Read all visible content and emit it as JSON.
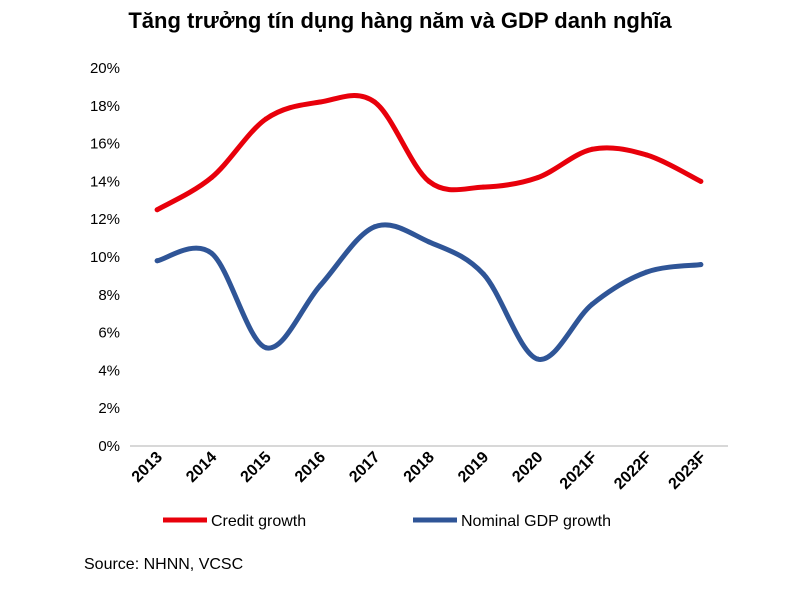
{
  "title": "Tăng trưởng tín dụng hàng năm và GDP danh nghĩa",
  "source": "Source: NHNN, VCSC",
  "chart_data": {
    "type": "line",
    "categories": [
      "2013",
      "2014",
      "2015",
      "2016",
      "2017",
      "2018",
      "2019",
      "2020",
      "2021F",
      "2022F",
      "2023F"
    ],
    "series": [
      {
        "name": "Credit growth",
        "color": "#e8000b",
        "values": [
          12.5,
          14.2,
          17.3,
          18.2,
          18.2,
          14.0,
          13.7,
          14.2,
          15.7,
          15.4,
          14.0
        ]
      },
      {
        "name": "Nominal GDP growth",
        "color": "#2f5597",
        "values": [
          9.8,
          10.2,
          5.2,
          8.5,
          11.6,
          10.8,
          9.1,
          4.6,
          7.5,
          9.2,
          9.6
        ]
      }
    ],
    "yticks": [
      "0%",
      "2%",
      "4%",
      "6%",
      "8%",
      "10%",
      "12%",
      "14%",
      "16%",
      "18%",
      "20%"
    ],
    "ylim": [
      0,
      20
    ],
    "ylabel": "",
    "xlabel": "",
    "legend_position": "bottom",
    "grid": false
  }
}
